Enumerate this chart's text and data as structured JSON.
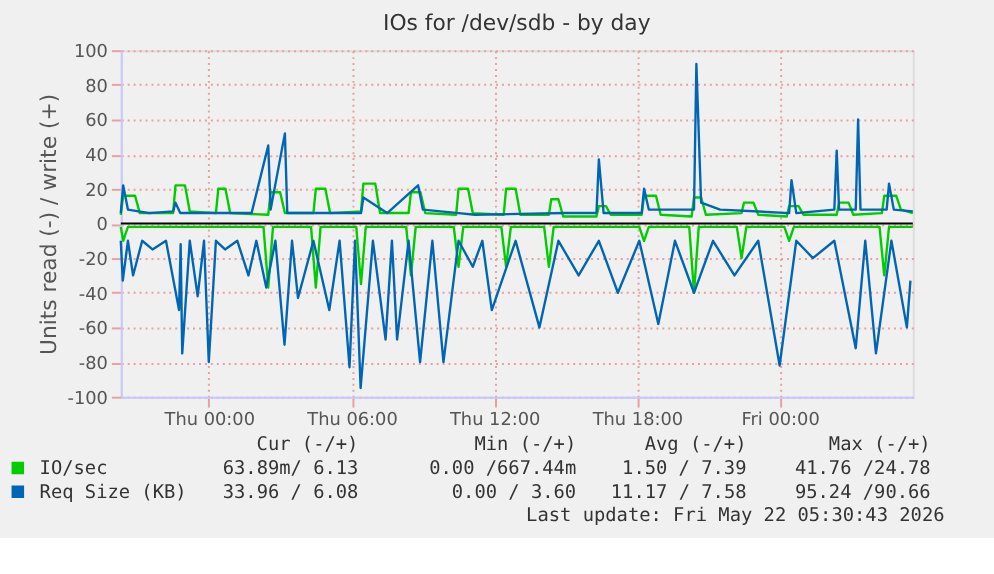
{
  "chart_data": {
    "type": "line",
    "title": "IOs for /dev/sdb - by day",
    "ylabel": "Units read (-) / write (+)",
    "xlim": [
      "2026-05-20T20:18",
      "2026-05-22T05:36"
    ],
    "xticks": [
      {
        "value": "2026-05-21T00:00",
        "label": "Thu 00:00"
      },
      {
        "value": "2026-05-21T06:00",
        "label": "Thu 06:00"
      },
      {
        "value": "2026-05-21T12:00",
        "label": "Thu 12:00"
      },
      {
        "value": "2026-05-21T18:00",
        "label": "Thu 18:00"
      },
      {
        "value": "2026-05-22T00:00",
        "label": "Fri 00:00"
      }
    ],
    "ylim": [
      -100,
      100
    ],
    "yticks": [
      -100,
      -80,
      -60,
      -40,
      -20,
      0,
      20,
      40,
      60,
      80,
      100
    ],
    "grid": true,
    "legend": "bottom",
    "line_style": "solid",
    "marker": "none",
    "ref_lines": [
      {
        "axis": "y",
        "value": 0,
        "color": "#000000"
      }
    ],
    "series": [
      {
        "name": "IO/sec",
        "color": "#00cc00",
        "x": [
          "2026-05-20T20:18",
          "2026-05-20T20:24",
          "2026-05-20T20:54",
          "2026-05-20T21:06",
          "2026-05-20T22:30",
          "2026-05-20T22:36",
          "2026-05-20T23:00",
          "2026-05-20T23:12",
          "2026-05-21T00:18",
          "2026-05-21T00:24",
          "2026-05-21T00:42",
          "2026-05-21T00:54",
          "2026-05-21T02:30",
          "2026-05-21T02:36",
          "2026-05-21T03:00",
          "2026-05-21T03:12",
          "2026-05-21T04:24",
          "2026-05-21T04:30",
          "2026-05-21T04:54",
          "2026-05-21T05:06",
          "2026-05-21T06:24",
          "2026-05-21T06:30",
          "2026-05-21T07:00",
          "2026-05-21T07:12",
          "2026-05-21T08:24",
          "2026-05-21T08:30",
          "2026-05-21T08:54",
          "2026-05-21T09:06",
          "2026-05-21T10:24",
          "2026-05-21T10:30",
          "2026-05-21T10:54",
          "2026-05-21T11:06",
          "2026-05-21T12:24",
          "2026-05-21T12:30",
          "2026-05-21T12:54",
          "2026-05-21T13:06",
          "2026-05-21T14:18",
          "2026-05-21T14:24",
          "2026-05-21T14:42",
          "2026-05-21T14:54",
          "2026-05-21T16:18",
          "2026-05-21T16:24",
          "2026-05-21T16:42",
          "2026-05-21T16:54",
          "2026-05-21T18:12",
          "2026-05-21T18:18",
          "2026-05-21T18:48",
          "2026-05-21T19:00",
          "2026-05-21T20:18",
          "2026-05-21T20:24",
          "2026-05-21T20:42",
          "2026-05-21T20:54",
          "2026-05-21T22:24",
          "2026-05-21T22:30",
          "2026-05-21T22:54",
          "2026-05-21T23:06",
          "2026-05-22T00:18",
          "2026-05-22T00:24",
          "2026-05-22T00:48",
          "2026-05-22T01:00",
          "2026-05-22T02:24",
          "2026-05-22T02:30",
          "2026-05-22T02:54",
          "2026-05-22T03:06",
          "2026-05-22T04:18",
          "2026-05-22T04:24",
          "2026-05-22T04:54",
          "2026-05-22T05:06",
          "2026-05-22T05:36"
        ],
        "values": [
          5,
          16,
          16,
          6,
          6,
          22,
          22,
          7,
          6,
          20,
          20,
          6,
          5,
          18,
          18,
          6,
          6,
          20,
          20,
          6,
          7,
          23,
          23,
          6,
          6,
          18,
          18,
          6,
          5,
          20,
          20,
          6,
          5,
          20,
          20,
          5,
          5,
          14,
          14,
          4,
          4,
          10,
          10,
          5,
          5,
          16,
          16,
          5,
          4,
          15,
          15,
          5,
          6,
          12,
          12,
          5,
          4,
          10,
          10,
          5,
          5,
          12,
          12,
          5,
          6,
          16,
          16,
          8,
          6
        ]
      },
      {
        "color": "#00cc00",
        "x": [
          "2026-05-20T20:18",
          "2026-05-20T20:24",
          "2026-05-20T20:36",
          "2026-05-21T02:18",
          "2026-05-21T02:30",
          "2026-05-21T02:42",
          "2026-05-21T04:18",
          "2026-05-21T04:30",
          "2026-05-21T04:42",
          "2026-05-21T06:12",
          "2026-05-21T06:24",
          "2026-05-21T06:36",
          "2026-05-21T08:18",
          "2026-05-21T08:30",
          "2026-05-21T08:42",
          "2026-05-21T10:18",
          "2026-05-21T10:30",
          "2026-05-21T10:42",
          "2026-05-21T12:18",
          "2026-05-21T12:30",
          "2026-05-21T12:42",
          "2026-05-21T14:06",
          "2026-05-21T14:18",
          "2026-05-21T14:30",
          "2026-05-21T18:06",
          "2026-05-21T18:18",
          "2026-05-21T18:30",
          "2026-05-21T20:12",
          "2026-05-21T20:24",
          "2026-05-21T20:36",
          "2026-05-21T22:12",
          "2026-05-21T22:24",
          "2026-05-21T22:36",
          "2026-05-22T00:12",
          "2026-05-22T00:24",
          "2026-05-22T00:36",
          "2026-05-22T04:12",
          "2026-05-22T04:24",
          "2026-05-22T04:36",
          "2026-05-22T05:36"
        ],
        "values": [
          -2,
          -10,
          -2,
          -2,
          -37,
          -2,
          -2,
          -37,
          -2,
          -2,
          -35,
          -2,
          -2,
          -30,
          -2,
          -2,
          -25,
          -2,
          -2,
          -25,
          -2,
          -2,
          -25,
          -2,
          -2,
          -10,
          -2,
          -2,
          -40,
          -2,
          -2,
          -20,
          -2,
          -2,
          -10,
          -2,
          -2,
          -30,
          -2,
          -2
        ]
      },
      {
        "name": "Req Size (KB)",
        "color": "#0066b3",
        "x": [
          "2026-05-20T20:18",
          "2026-05-20T20:24",
          "2026-05-20T20:36",
          "2026-05-20T21:30",
          "2026-05-20T22:30",
          "2026-05-20T22:36",
          "2026-05-20T22:48",
          "2026-05-21T01:48",
          "2026-05-21T02:30",
          "2026-05-21T02:36",
          "2026-05-21T03:12",
          "2026-05-21T03:18",
          "2026-05-21T06:24",
          "2026-05-21T06:30",
          "2026-05-21T07:30",
          "2026-05-21T08:48",
          "2026-05-21T09:00",
          "2026-05-21T10:30",
          "2026-05-21T11:12",
          "2026-05-21T15:00",
          "2026-05-21T16:18",
          "2026-05-21T16:24",
          "2026-05-21T16:36",
          "2026-05-21T18:12",
          "2026-05-21T18:18",
          "2026-05-21T18:30",
          "2026-05-21T20:24",
          "2026-05-21T20:30",
          "2026-05-21T20:42",
          "2026-05-21T21:30",
          "2026-05-22T00:24",
          "2026-05-22T00:30",
          "2026-05-22T00:42",
          "2026-05-22T02:18",
          "2026-05-22T02:24",
          "2026-05-22T02:30",
          "2026-05-22T03:12",
          "2026-05-22T03:18",
          "2026-05-22T03:24",
          "2026-05-22T04:30",
          "2026-05-22T04:36",
          "2026-05-22T04:48",
          "2026-05-22T05:36"
        ],
        "values": [
          6,
          22,
          8,
          6,
          7,
          12,
          6,
          6,
          45,
          8,
          52,
          6,
          6,
          15,
          6,
          22,
          8,
          6,
          5,
          6,
          6,
          37,
          6,
          6,
          20,
          8,
          8,
          92,
          12,
          8,
          6,
          25,
          6,
          8,
          42,
          8,
          8,
          60,
          8,
          8,
          23,
          8,
          7
        ]
      },
      {
        "color": "#0066b3",
        "x": [
          "2026-05-20T20:18",
          "2026-05-20T20:23",
          "2026-05-20T20:36",
          "2026-05-20T20:49",
          "2026-05-20T21:12",
          "2026-05-20T21:38",
          "2026-05-20T22:12",
          "2026-05-20T22:45",
          "2026-05-20T22:49",
          "2026-05-20T22:53",
          "2026-05-20T23:12",
          "2026-05-20T23:32",
          "2026-05-20T23:48",
          "2026-05-21T00:00",
          "2026-05-21T00:18",
          "2026-05-21T00:41",
          "2026-05-21T01:12",
          "2026-05-21T01:40",
          "2026-05-21T02:00",
          "2026-05-21T02:25",
          "2026-05-21T02:48",
          "2026-05-21T03:11",
          "2026-05-21T03:30",
          "2026-05-21T03:45",
          "2026-05-21T04:24",
          "2026-05-21T05:04",
          "2026-05-21T05:30",
          "2026-05-21T05:55",
          "2026-05-21T06:09",
          "2026-05-21T06:23",
          "2026-05-21T06:54",
          "2026-05-21T07:26",
          "2026-05-21T07:42",
          "2026-05-21T07:55",
          "2026-05-21T08:24",
          "2026-05-21T08:53",
          "2026-05-21T09:24",
          "2026-05-21T09:52",
          "2026-05-21T10:30",
          "2026-05-21T11:06",
          "2026-05-21T11:30",
          "2026-05-21T11:54",
          "2026-05-21T12:54",
          "2026-05-21T13:54",
          "2026-05-21T14:42",
          "2026-05-21T15:33",
          "2026-05-21T16:24",
          "2026-05-21T17:12",
          "2026-05-21T18:06",
          "2026-05-21T18:54",
          "2026-05-21T19:36",
          "2026-05-21T20:24",
          "2026-05-21T21:12",
          "2026-05-21T22:06",
          "2026-05-21T23:06",
          "2026-05-22T00:00",
          "2026-05-22T00:42",
          "2026-05-22T01:24",
          "2026-05-22T02:18",
          "2026-05-22T03:12",
          "2026-05-22T03:36",
          "2026-05-22T04:03",
          "2026-05-22T04:42",
          "2026-05-22T05:21",
          "2026-05-22T05:30"
        ],
        "values": [
          -10,
          -33,
          -10,
          -30,
          -10,
          -15,
          -10,
          -50,
          -12,
          -75,
          -10,
          -42,
          -10,
          -80,
          -10,
          -15,
          -10,
          -30,
          -10,
          -37,
          -10,
          -70,
          -10,
          -43,
          -10,
          -50,
          -10,
          -83,
          -10,
          -95,
          -10,
          -67,
          -10,
          -67,
          -10,
          -80,
          -10,
          -80,
          -10,
          -25,
          -10,
          -50,
          -10,
          -60,
          -10,
          -30,
          -10,
          -40,
          -10,
          -58,
          -10,
          -40,
          -10,
          -30,
          -10,
          -82,
          -10,
          -20,
          -10,
          -72,
          -10,
          -75,
          -10,
          -60,
          -33
        ]
      }
    ],
    "annotations": [
      "Cur (-/+)",
      "Min (-/+)",
      "Avg (-/+)",
      "Max (-/+)",
      "63.89m/ 6.13",
      "0.00 /667.44m",
      "1.50 / 7.39",
      "41.76 /24.78",
      "33.96 / 6.08",
      "0.00 / 3.60",
      "11.17 / 7.58",
      "95.24 /90.66",
      "Last update: Fri May 22 05:30:43 2026"
    ]
  }
}
